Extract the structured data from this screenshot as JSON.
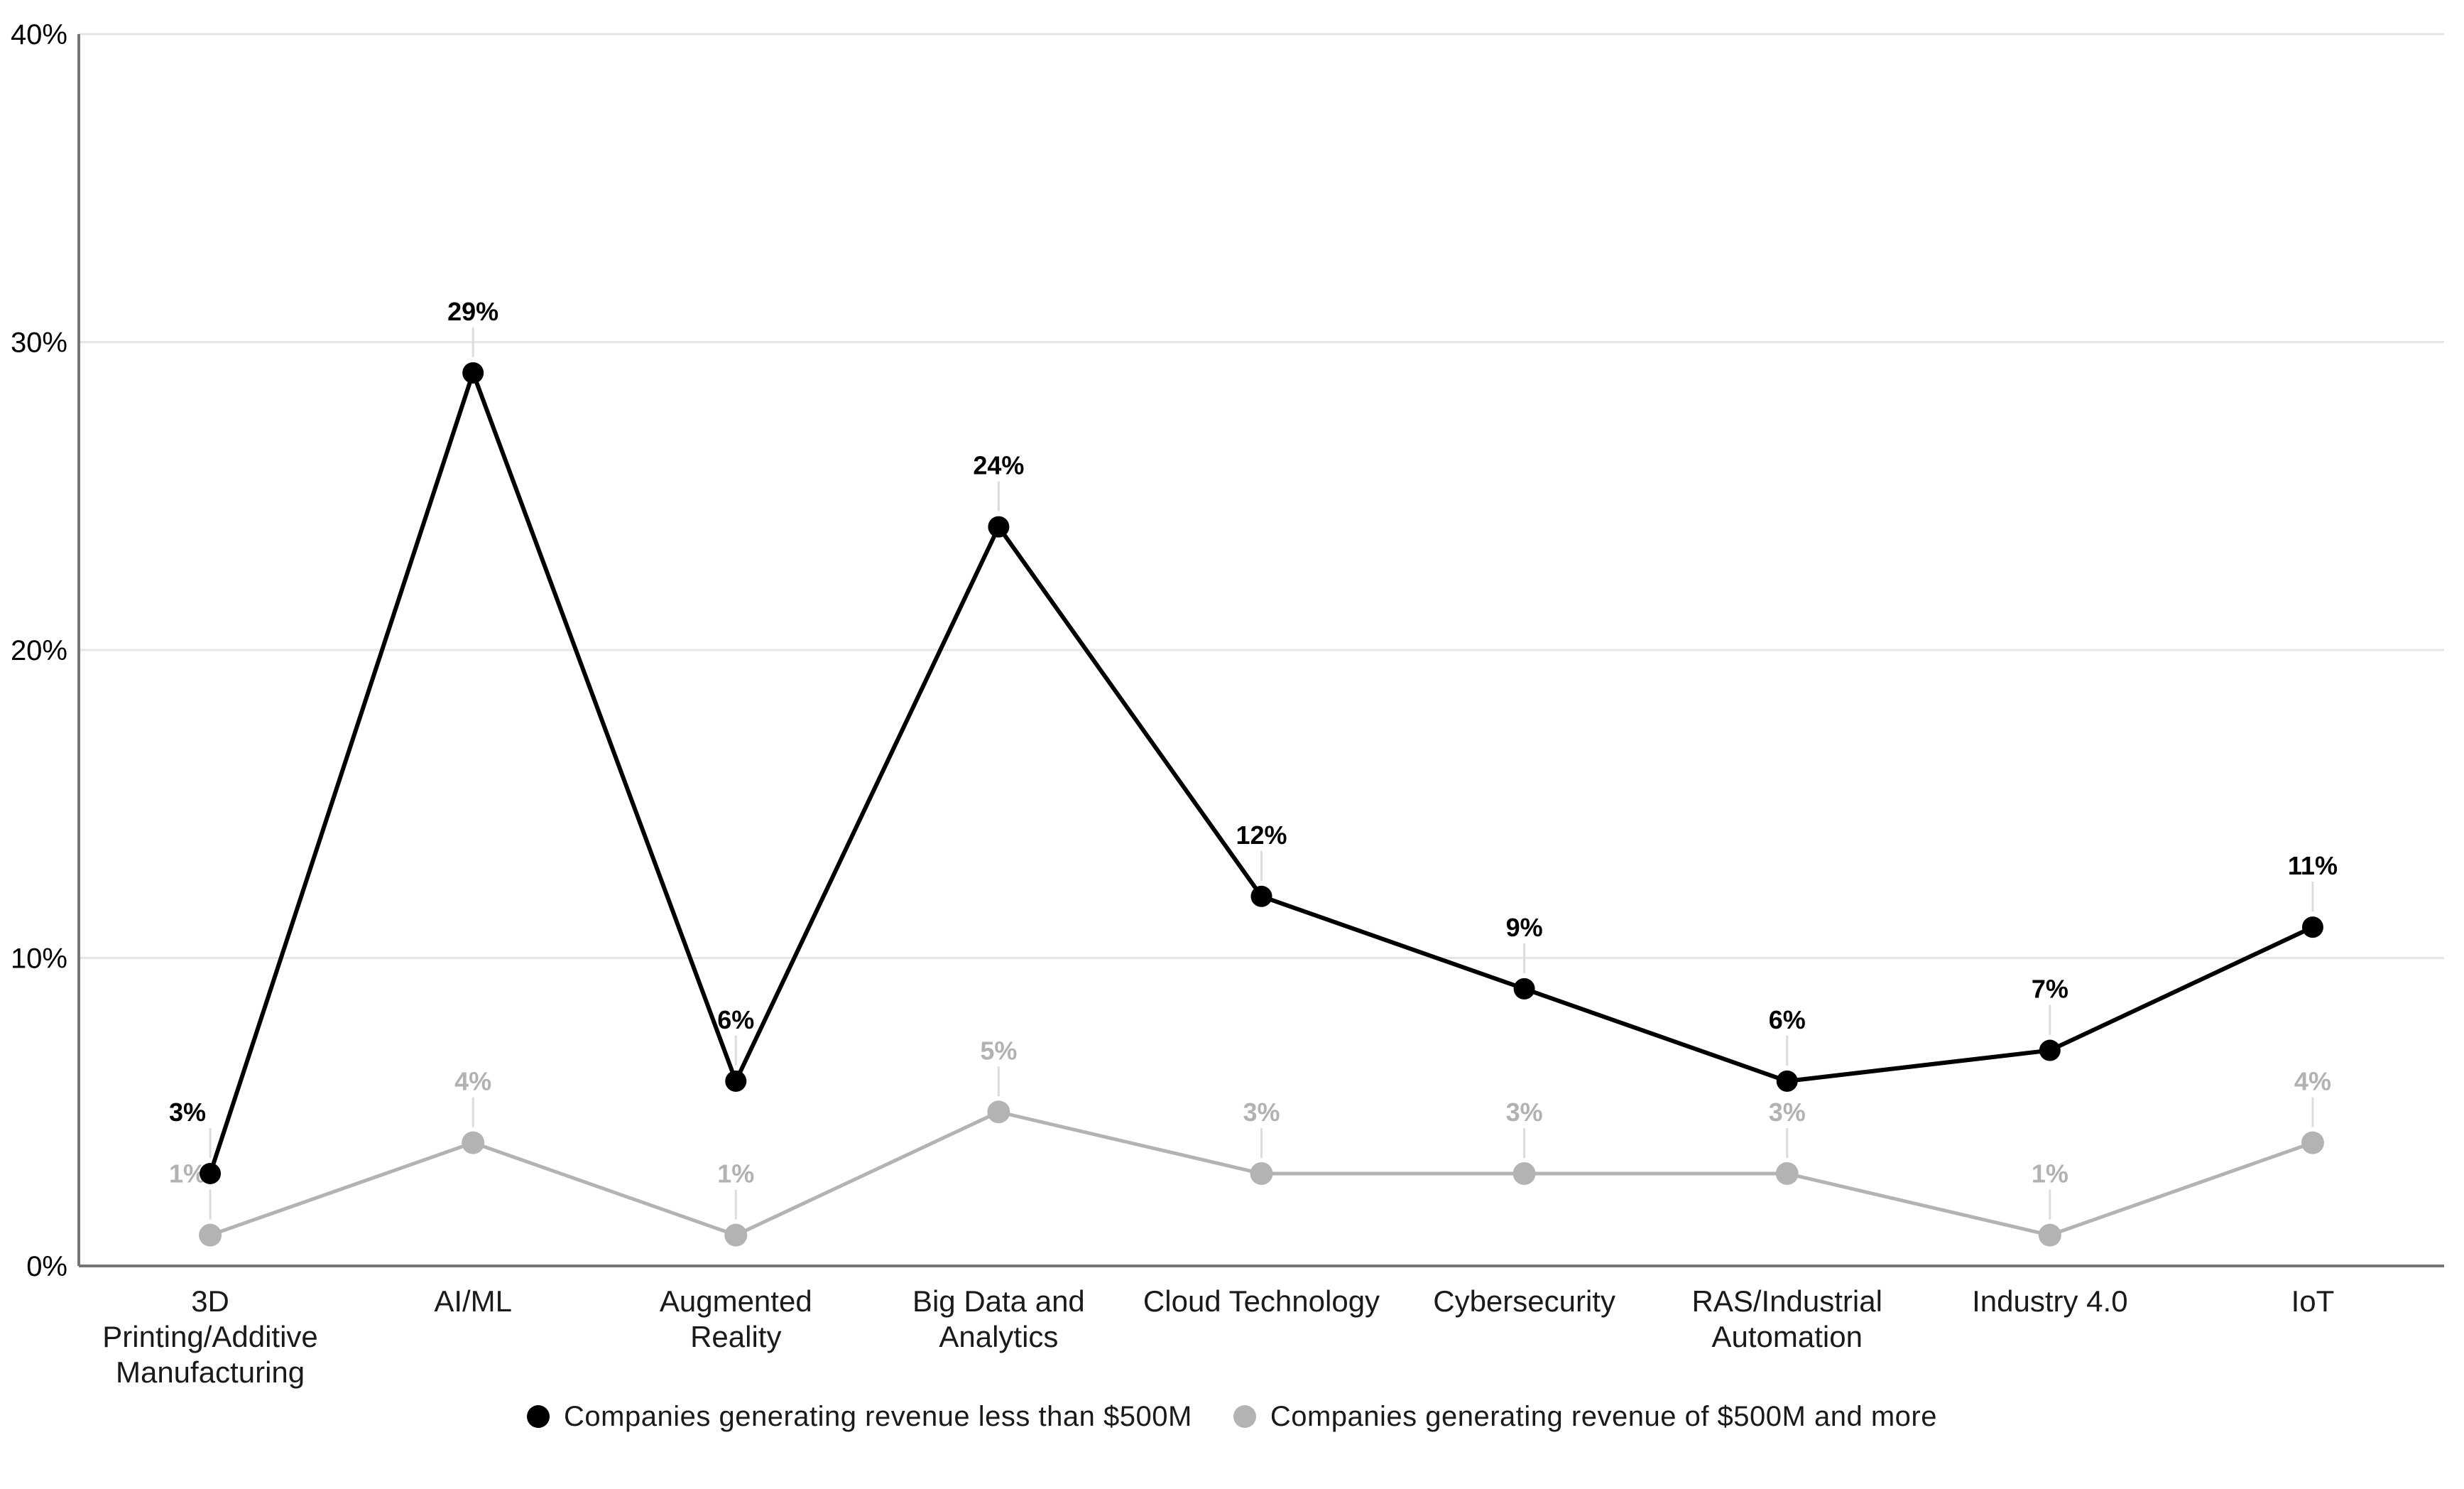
{
  "chart_data": {
    "type": "line",
    "title": "",
    "xlabel": "",
    "ylabel": "",
    "categories": [
      "3D Printing/Additive Manufacturing",
      "AI/ML",
      "Augmented Reality",
      "Big Data and Analytics",
      "Cloud Technology",
      "Cybersecurity",
      "RAS/Industrial Automation",
      "Industry 4.0",
      "IoT"
    ],
    "category_lines": [
      [
        "3D",
        "Printing/Additive",
        "Manufacturing"
      ],
      [
        "AI/ML"
      ],
      [
        "Augmented",
        "Reality"
      ],
      [
        "Big Data and",
        "Analytics"
      ],
      [
        "Cloud Technology"
      ],
      [
        "Cybersecurity"
      ],
      [
        "RAS/Industrial",
        "Automation"
      ],
      [
        "Industry 4.0"
      ],
      [
        "IoT"
      ]
    ],
    "series": [
      {
        "name": "Companies generating revenue less than $500M",
        "values": [
          3,
          29,
          6,
          24,
          12,
          9,
          6,
          7,
          11
        ],
        "labels": [
          "3%",
          "29%",
          "6%",
          "24%",
          "12%",
          "9%",
          "6%",
          "7%",
          "11%"
        ],
        "color": "#000000",
        "label_color": "#000000"
      },
      {
        "name": "Companies generating revenue of $500M and more",
        "values": [
          1,
          4,
          1,
          5,
          3,
          3,
          3,
          1,
          4
        ],
        "labels": [
          "1%",
          "4%",
          "1%",
          "5%",
          "3%",
          "3%",
          "3%",
          "1%",
          "4%"
        ],
        "color": "#b3b3b3",
        "label_color": "#b2b2b2"
      }
    ],
    "y_ticks": [
      0,
      10,
      20,
      30,
      40
    ],
    "y_tick_labels": [
      "0%",
      "10%",
      "20%",
      "30%",
      "40%"
    ],
    "ylim": [
      0,
      40
    ],
    "grid": true,
    "legend_position": "bottom",
    "colors": {
      "background": "#ffffff",
      "gridline": "#e6e6e6",
      "axis": "#757575",
      "leader": "#dcdcdc",
      "tick_label": "#000000"
    }
  },
  "legend": {
    "items": [
      {
        "label": "Companies generating revenue less than $500M",
        "color": "#000000"
      },
      {
        "label": "Companies generating revenue of $500M and more",
        "color": "#b3b3b3"
      }
    ]
  }
}
